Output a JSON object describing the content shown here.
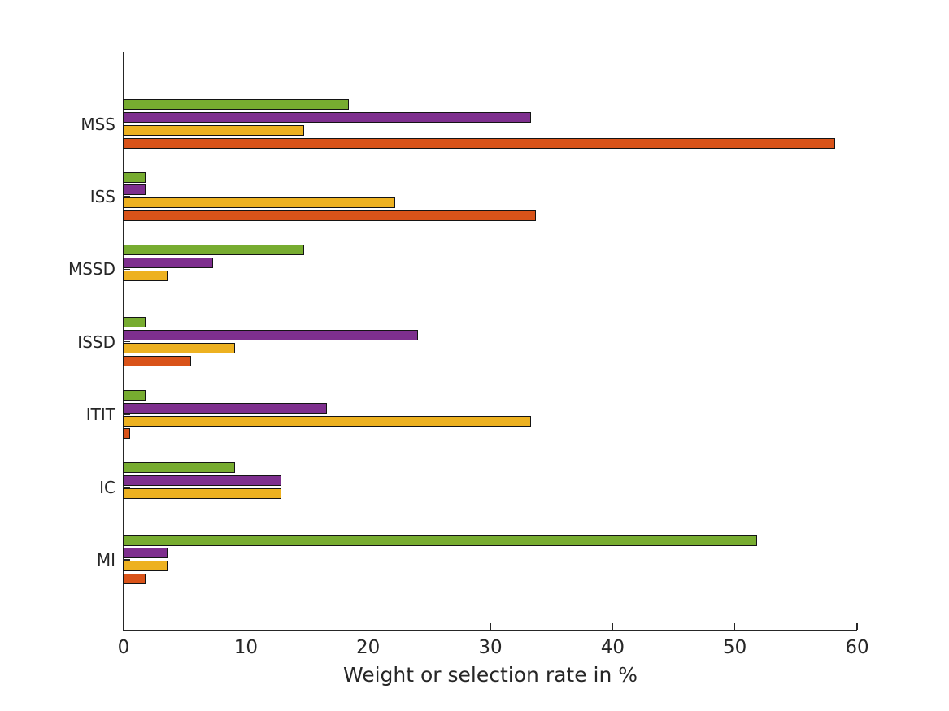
{
  "chart_data": {
    "type": "bar",
    "orientation": "horizontal",
    "title": "",
    "xlabel": "Weight or selection rate in %",
    "ylabel": "",
    "xlim": [
      0,
      60
    ],
    "xticks": [
      0,
      10,
      20,
      30,
      40,
      50,
      60
    ],
    "grid": false,
    "legend_position": "none",
    "categories": [
      "MSS",
      "ISS",
      "MSSD",
      "ISSD",
      "ITIT",
      "IC",
      "MI"
    ],
    "series": [
      {
        "name": "green",
        "color": "#77AC30",
        "values": [
          18.5,
          1.9,
          14.9,
          1.9,
          1.9,
          9.2,
          51.9
        ]
      },
      {
        "name": "purple",
        "color": "#7E2F8E",
        "values": [
          33.4,
          1.9,
          7.4,
          24.2,
          16.7,
          13.0,
          3.7
        ]
      },
      {
        "name": "yellow",
        "color": "#EDB120",
        "values": [
          14.9,
          22.3,
          3.7,
          9.2,
          33.4,
          13.0,
          3.7
        ]
      },
      {
        "name": "orange",
        "color": "#D95319",
        "values": [
          58.3,
          33.8,
          0,
          5.6,
          0.6,
          0,
          1.9
        ]
      }
    ],
    "bar_edge_color": "#141414",
    "axis_color": "#262626",
    "background_color": "#ffffff"
  }
}
